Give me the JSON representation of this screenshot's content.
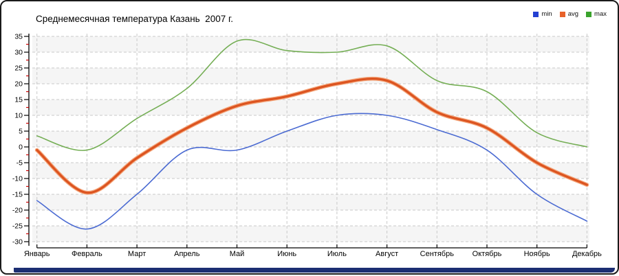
{
  "title": "Среднемесячная температура Казань  2007 г.",
  "bottom_bar_color": "#1c2e72",
  "axes": {
    "axis_color": "#000000",
    "grid_color": "#c9c9c9",
    "band_color": "#f5f5f5",
    "minor_tick_color": "#cc0000",
    "label_color": "#000000"
  },
  "chart_data": {
    "type": "line",
    "title": "Среднемесячная температура Казань  2007 г.",
    "categories": [
      "Январь",
      "Февраль",
      "Март",
      "Апрель",
      "Май",
      "Июнь",
      "Июль",
      "Август",
      "Сентябрь",
      "Октябрь",
      "Ноябрь",
      "Декабрь"
    ],
    "series": [
      {
        "name": "min",
        "color": "#4a6ad2",
        "marker": "#2340d2",
        "width": 1.6,
        "values": [
          -17,
          -26,
          -15,
          -1,
          -1,
          5,
          10,
          10,
          5.5,
          -1,
          -15,
          -23.5
        ]
      },
      {
        "name": "avg",
        "color": "#dc5420",
        "marker": "#e8622a",
        "width": 3.2,
        "halo": "#f4a87e",
        "values": [
          -1,
          -14.5,
          -3.5,
          6,
          13,
          16,
          20,
          21,
          11,
          6,
          -5,
          -12
        ]
      },
      {
        "name": "max",
        "color": "#74ae54",
        "marker": "#3aa32c",
        "width": 1.6,
        "values": [
          3.5,
          -1,
          9,
          18.5,
          33.5,
          30.5,
          30,
          32,
          21,
          17.5,
          4.5,
          0
        ]
      }
    ],
    "ylim": [
      -30,
      35
    ],
    "ytick_step": 5,
    "yminor_step": 2.5,
    "grid": "dashed",
    "banded_background": true,
    "legend_position": "top-right",
    "xlabel": "",
    "ylabel": ""
  }
}
